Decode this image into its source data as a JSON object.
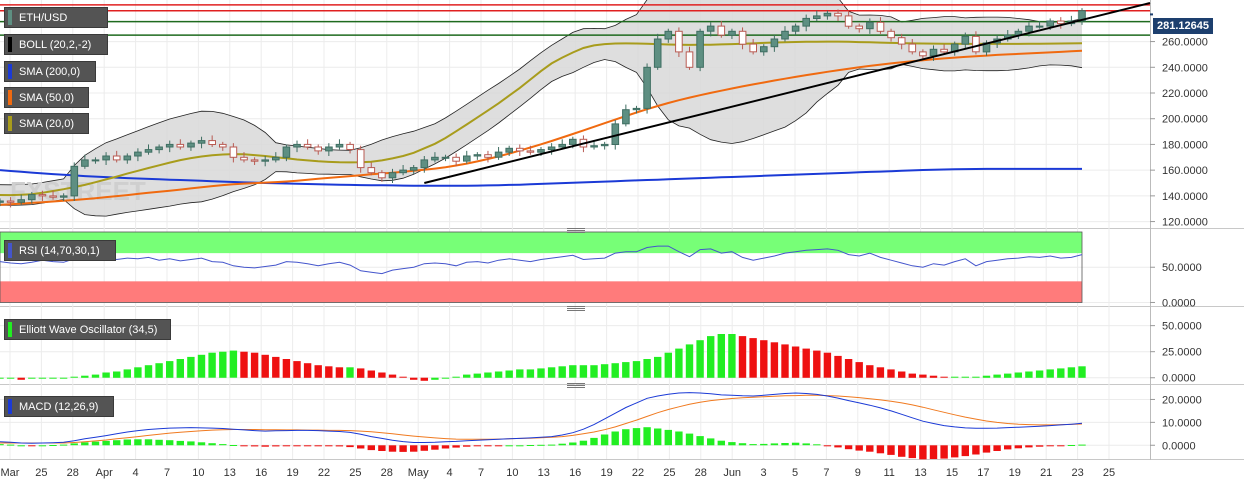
{
  "pair_label": "ETH/USD",
  "last_price": "281.12645",
  "indicators": {
    "boll": "BOLL (20,2,-2)",
    "sma200": "SMA (200,0)",
    "sma50": "SMA (50,0)",
    "sma20": "SMA (20,0)",
    "rsi": "RSI (14,70,30,1)",
    "ewo": "Elliott Wave Oscillator (34,5)",
    "macd": "MACD (12,26,9)"
  },
  "watermark": "FXSTREET",
  "colors": {
    "up_candle": "#5e8f82",
    "down_candle": "#d9817a",
    "sma200": "#1b3ad6",
    "sma50": "#f06a10",
    "sma20": "#a89c1c",
    "trendline": "#000000",
    "resistance": "#e02020",
    "support": "#1e6a1e",
    "ewo_pos": "#22ee22",
    "ewo_neg": "#ee1111",
    "macd_line": "#1b3ad6",
    "signal_line": "#f07a20",
    "rsi_line": "#4455cc",
    "overbought_zone": "#77ff77",
    "oversold_zone": "#ff7b7b"
  },
  "x_axis_labels": [
    "Mar",
    "25",
    "28",
    "Apr",
    "4",
    "7",
    "10",
    "13",
    "16",
    "19",
    "22",
    "25",
    "28",
    "May",
    "4",
    "7",
    "10",
    "13",
    "16",
    "19",
    "22",
    "25",
    "28",
    "Jun",
    "3",
    "5",
    "7",
    "9",
    "11",
    "13",
    "15",
    "17",
    "19",
    "21",
    "23",
    "25"
  ],
  "chart_data": [
    {
      "type": "candlestick",
      "panel": "price",
      "y_ticks": [
        "120.0000",
        "140.0000",
        "160.0000",
        "180.0000",
        "200.0000",
        "220.0000",
        "240.0000",
        "260.0000"
      ],
      "ylim": [
        115,
        290
      ],
      "last_value": 281.13,
      "horizontal_levels": {
        "resistance": [
          288.5,
          284.0
        ],
        "support": [
          275.5,
          265.0
        ]
      },
      "series": [
        {
          "name": "ETH/USD",
          "close": [
            136,
            135,
            137,
            141,
            140,
            139,
            140,
            163,
            168,
            168,
            171,
            168,
            171,
            174,
            176,
            178,
            180,
            178,
            181,
            183,
            180,
            178,
            170,
            168,
            167,
            168,
            170,
            178,
            180,
            178,
            175,
            178,
            180,
            176,
            162,
            158,
            154,
            158,
            160,
            162,
            168,
            170,
            170,
            167,
            171,
            172,
            170,
            174,
            177,
            175,
            174,
            176,
            178,
            180,
            184,
            178,
            179,
            180,
            196,
            207,
            208,
            240,
            262,
            268,
            252,
            240,
            268,
            272,
            265,
            268,
            258,
            252,
            256,
            262,
            268,
            272,
            278,
            280,
            282,
            280,
            272,
            270,
            275,
            268,
            263,
            258,
            252,
            249,
            254,
            252,
            258,
            264,
            252,
            259,
            262,
            265,
            268,
            272,
            272,
            276,
            274,
            276,
            284
          ]
        },
        {
          "name": "SMA (20,0)",
          "values": [
            140.7,
            140.6,
            140.8,
            141.2,
            142.4,
            143.8,
            145.2,
            146.8,
            148.5,
            150.6,
            152.8,
            155.0,
            157.3,
            159.5,
            161.7,
            163.8,
            165.9,
            167.8,
            169.4,
            170.6,
            171.6,
            172.2,
            172.5,
            172.4,
            171.7,
            171.0,
            170.1,
            169.2,
            168.3,
            167.6,
            166.9,
            166.4,
            166.1,
            166.0,
            166.1,
            166.6,
            167.6,
            169.1,
            171.0,
            173.5,
            177.0,
            180.5,
            185.0,
            190.2,
            195.5,
            201.0,
            206.5,
            212.0,
            218.0,
            224.0,
            230.5,
            237.0,
            243.0,
            247.5,
            251.5,
            255.0,
            257.0,
            258.0,
            258.5,
            258.6,
            258.5,
            258.3,
            258.0,
            257.7,
            257.5,
            257.4,
            257.5,
            257.6,
            257.8,
            258.0,
            258.3,
            258.6,
            259.0,
            259.3,
            259.5,
            259.7,
            259.8,
            259.9,
            260.0,
            260.0,
            259.8,
            259.6,
            259.5,
            259.2,
            259.0,
            258.8,
            258.6,
            258.5,
            258.4,
            258.3,
            258.3,
            258.2,
            258.2,
            258.2,
            258.2,
            258.2,
            258.2,
            258.3,
            258.3,
            258.4,
            258.5,
            258.6,
            258.7
          ]
        },
        {
          "name": "SMA (50,0)",
          "values": [
            133.0,
            133.5,
            134.0,
            134.5,
            135.0,
            135.6,
            136.2,
            136.8,
            137.5,
            138.2,
            139.0,
            139.8,
            140.6,
            141.5,
            142.4,
            143.2,
            144.0,
            144.9,
            145.8,
            146.7,
            147.6,
            148.4,
            149.0,
            149.5,
            149.9,
            150.3,
            150.7,
            151.2,
            151.8,
            152.5,
            153.3,
            154.0,
            154.7,
            155.4,
            156.1,
            156.8,
            157.4,
            158.0,
            158.7,
            159.5,
            160.3,
            161.2,
            162.3,
            163.6,
            165.1,
            166.8,
            168.7,
            170.7,
            172.9,
            175.2,
            177.6,
            180.1,
            182.7,
            185.4,
            188.1,
            190.9,
            193.7,
            196.5,
            199.3,
            202.1,
            204.8,
            207.4,
            209.9,
            212.2,
            214.4,
            216.4,
            218.3,
            220.1,
            221.8,
            223.5,
            225.1,
            226.7,
            228.2,
            229.7,
            231.1,
            232.5,
            233.9,
            235.2,
            236.5,
            237.7,
            238.9,
            240.0,
            241.1,
            242.1,
            243.0,
            243.9,
            244.7,
            245.5,
            246.2,
            246.9,
            247.5,
            248.1,
            248.6,
            249.1,
            249.6,
            250.0,
            250.4,
            250.8,
            251.2,
            251.6,
            252.0,
            252.4,
            252.8
          ]
        },
        {
          "name": "SMA (200,0)",
          "values": [
            160.0,
            159.3,
            158.7,
            158.1,
            157.5,
            156.9,
            156.4,
            155.9,
            155.4,
            155.0,
            154.6,
            154.2,
            153.8,
            153.5,
            153.2,
            152.9,
            152.6,
            152.3,
            152.0,
            151.7,
            151.4,
            151.1,
            150.8,
            150.5,
            150.3,
            150.0,
            149.8,
            149.6,
            149.4,
            149.2,
            149.0,
            148.8,
            148.6,
            148.5,
            148.4,
            148.3,
            148.2,
            148.1,
            148.0,
            147.9,
            147.8,
            147.8,
            147.8,
            147.8,
            147.9,
            148.0,
            148.1,
            148.3,
            148.5,
            148.7,
            149.0,
            149.3,
            149.6,
            149.9,
            150.2,
            150.5,
            150.8,
            151.1,
            151.4,
            151.7,
            152.0,
            152.3,
            152.6,
            152.9,
            153.2,
            153.5,
            153.8,
            154.1,
            154.4,
            154.7,
            155.0,
            155.3,
            155.6,
            155.9,
            156.2,
            156.5,
            156.8,
            157.1,
            157.4,
            157.7,
            158.0,
            158.3,
            158.6,
            158.9,
            159.2,
            159.5,
            159.8,
            160.1,
            160.3,
            160.5,
            160.7,
            160.8,
            160.9,
            161.0,
            161.0,
            161.0,
            161.0,
            161.0,
            161.0,
            161.0,
            161.0,
            161.0,
            161.0
          ]
        }
      ]
    },
    {
      "type": "line",
      "panel": "rsi",
      "y_ticks": [
        "50.0000",
        "0.0000"
      ],
      "ylim": [
        -5,
        100
      ],
      "overbought": 70,
      "oversold": 30,
      "series": [
        {
          "name": "RSI (14,70,30,1)",
          "values": [
            58,
            56,
            55,
            57,
            60,
            58,
            57,
            62,
            64,
            63,
            65,
            61,
            63,
            62,
            64,
            60,
            62,
            59,
            61,
            63,
            58,
            57,
            52,
            50,
            49,
            51,
            53,
            58,
            57,
            55,
            52,
            55,
            57,
            53,
            45,
            43,
            41,
            46,
            48,
            50,
            55,
            56,
            55,
            52,
            57,
            58,
            56,
            60,
            62,
            60,
            58,
            61,
            63,
            65,
            67,
            61,
            62,
            63,
            70,
            72,
            72,
            78,
            80,
            80,
            72,
            65,
            75,
            76,
            70,
            72,
            64,
            60,
            63,
            66,
            70,
            72,
            74,
            75,
            76,
            74,
            68,
            66,
            70,
            64,
            60,
            56,
            52,
            50,
            55,
            53,
            58,
            62,
            52,
            58,
            60,
            62,
            63,
            65,
            64,
            66,
            63,
            64,
            68
          ]
        }
      ]
    },
    {
      "type": "bar",
      "panel": "elliott_wave_oscillator",
      "y_ticks": [
        "50.0000",
        "25.0000",
        "0.0000"
      ],
      "ylim": [
        -6,
        65
      ],
      "series": [
        {
          "name": "Elliott Wave Oscillator (34,5)",
          "values": [
            -1,
            -1,
            -2,
            -1,
            -1,
            -1,
            -1,
            1,
            2,
            3,
            5,
            6,
            8,
            10,
            12,
            14,
            16,
            18,
            20,
            22,
            24,
            25,
            26,
            25,
            24,
            22,
            20,
            18,
            16,
            14,
            12,
            11,
            10,
            10,
            9,
            7,
            5,
            3,
            1,
            -2,
            -3,
            -2,
            -1,
            1,
            3,
            4,
            5,
            6,
            7,
            8,
            8,
            9,
            10,
            11,
            12,
            12,
            12,
            13,
            14,
            15,
            16,
            18,
            20,
            24,
            28,
            32,
            36,
            40,
            42,
            42,
            40,
            38,
            36,
            34,
            32,
            30,
            28,
            26,
            24,
            21,
            18,
            15,
            12,
            10,
            8,
            6,
            4,
            3,
            2,
            1,
            1,
            1,
            1,
            2,
            3,
            4,
            5,
            6,
            7,
            8,
            9,
            10,
            11
          ]
        }
      ]
    },
    {
      "type": "line",
      "panel": "macd",
      "y_ticks": [
        "20.0000",
        "10.0000",
        "0.0000"
      ],
      "ylim": [
        -6,
        25
      ],
      "series": [
        {
          "name": "MACD",
          "values": [
            1.5,
            1.3,
            1.0,
            0.9,
            1.0,
            1.1,
            1.3,
            2.0,
            2.8,
            3.5,
            4.2,
            5.0,
            5.8,
            6.4,
            6.9,
            7.2,
            7.5,
            7.6,
            7.7,
            7.6,
            7.5,
            7.3,
            7.0,
            6.7,
            6.4,
            6.2,
            6.3,
            6.4,
            6.5,
            6.5,
            6.4,
            6.2,
            6.0,
            5.6,
            4.8,
            3.8,
            3.0,
            2.2,
            1.6,
            1.2,
            1.2,
            1.3,
            1.5,
            1.7,
            2.0,
            2.2,
            2.4,
            2.6,
            2.8,
            3.0,
            3.2,
            3.5,
            3.8,
            4.5,
            5.5,
            7.0,
            9.0,
            11.5,
            14.0,
            16.5,
            18.5,
            20.5,
            21.5,
            22.3,
            22.8,
            23.0,
            22.8,
            22.5,
            22.0,
            21.8,
            21.6,
            21.5,
            21.8,
            22.2,
            22.6,
            22.8,
            22.6,
            22.2,
            21.5,
            20.6,
            19.5,
            18.5,
            17.5,
            16.3,
            15.0,
            13.5,
            12.0,
            10.5,
            9.5,
            8.6,
            8.0,
            7.6,
            7.4,
            7.4,
            7.5,
            7.7,
            7.9,
            8.1,
            8.3,
            8.6,
            8.9,
            9.2,
            9.6
          ]
        },
        {
          "name": "Signal",
          "values": [
            1.0,
            1.0,
            1.0,
            1.0,
            1.0,
            1.0,
            1.0,
            1.2,
            1.5,
            1.9,
            2.3,
            2.8,
            3.3,
            3.8,
            4.3,
            4.8,
            5.3,
            5.7,
            6.0,
            6.3,
            6.6,
            6.8,
            6.9,
            6.9,
            6.9,
            6.8,
            6.8,
            6.7,
            6.7,
            6.6,
            6.6,
            6.5,
            6.5,
            6.4,
            6.2,
            5.9,
            5.5,
            5.0,
            4.5,
            4.0,
            3.6,
            3.2,
            2.9,
            2.7,
            2.6,
            2.6,
            2.6,
            2.7,
            2.8,
            3.0,
            3.1,
            3.3,
            3.5,
            3.8,
            4.3,
            5.0,
            5.8,
            6.8,
            8.0,
            9.5,
            11.0,
            12.6,
            14.2,
            15.6,
            16.8,
            17.9,
            18.8,
            19.5,
            20.0,
            20.4,
            20.7,
            21.0,
            21.2,
            21.4,
            21.6,
            21.7,
            21.8,
            21.8,
            21.7,
            21.5,
            21.2,
            20.8,
            20.3,
            19.8,
            19.2,
            18.5,
            17.6,
            16.6,
            15.5,
            14.4,
            13.3,
            12.3,
            11.4,
            10.6,
            10.0,
            9.5,
            9.2,
            9.0,
            8.9,
            8.9,
            9.0,
            9.1,
            9.3
          ]
        }
      ]
    }
  ]
}
